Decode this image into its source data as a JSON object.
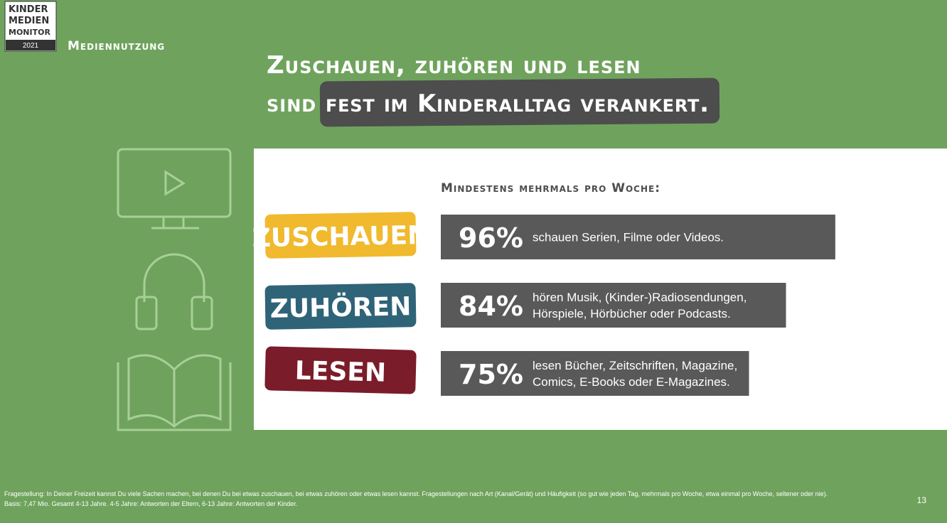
{
  "logo": {
    "lines": [
      "KINDER",
      "MEDIEN",
      "MONITOR"
    ],
    "year": "2021"
  },
  "section": "Mediennutzung",
  "headline": {
    "line1": "Zuschauen, zuhören und lesen",
    "line2_start": "sind",
    "line2_highlight": "fest im Kinderalltag verankert."
  },
  "chart_data": {
    "type": "bar",
    "orientation": "horizontal",
    "title": "Mindestens mehrmals pro Woche:",
    "categories": [
      "ZUSCHAUEN",
      "ZUHÖREN",
      "LESEN"
    ],
    "category_colors": [
      "#f0b92e",
      "#2f6378",
      "#7a1c2a"
    ],
    "values": [
      96,
      84,
      75
    ],
    "value_labels": [
      "96%",
      "84%",
      "75%"
    ],
    "color": "#595959",
    "descriptions": [
      [
        "schauen Serien, Filme oder Videos."
      ],
      [
        "hören Musik, (Kinder-)Radiosendungen,",
        "Hörspiele, Hörbücher oder Podcasts."
      ],
      [
        "lesen Bücher, Zeitschriften, Magazine,",
        "Comics, E-Books oder E-Magazines."
      ]
    ]
  },
  "footnote": [
    "Fragestellung: In Deiner Freizeit kannst Du viele Sachen machen, bei denen Du bei etwas zuschauen, bei etwas zuhören oder etwas lesen kannst. Fragestellungen nach Art (Kanal/Gerät) und Häufigkeit (so gut wie jeden Tag, mehrmals pro Woche, etwa einmal pro Woche, seltener oder nie).",
    "Basis: 7,47 Mio. Gesamt 4-13 Jahre. 4-5 Jahre: Antworten der Eltern, 6-13 Jahre: Antworten der Kinder."
  ],
  "page_number": "13"
}
